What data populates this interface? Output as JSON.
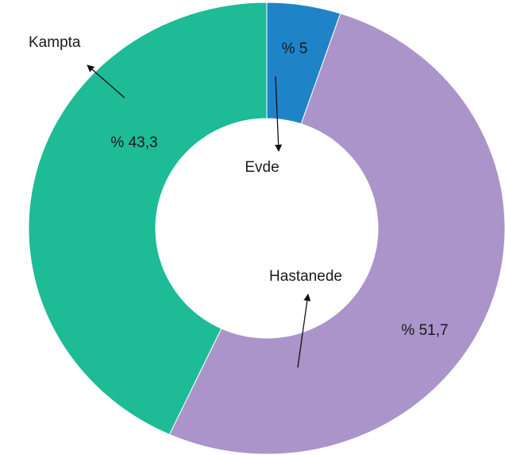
{
  "chart_data": {
    "type": "donut",
    "categories": [
      "Evde",
      "Hastanede",
      "Kampta"
    ],
    "values": [
      5,
      51.7,
      43.3
    ],
    "value_labels": [
      "% 5",
      "% 51,7",
      "% 43,3"
    ],
    "colors": [
      "#1f83c8",
      "#ab94c9",
      "#1dbb96"
    ]
  }
}
